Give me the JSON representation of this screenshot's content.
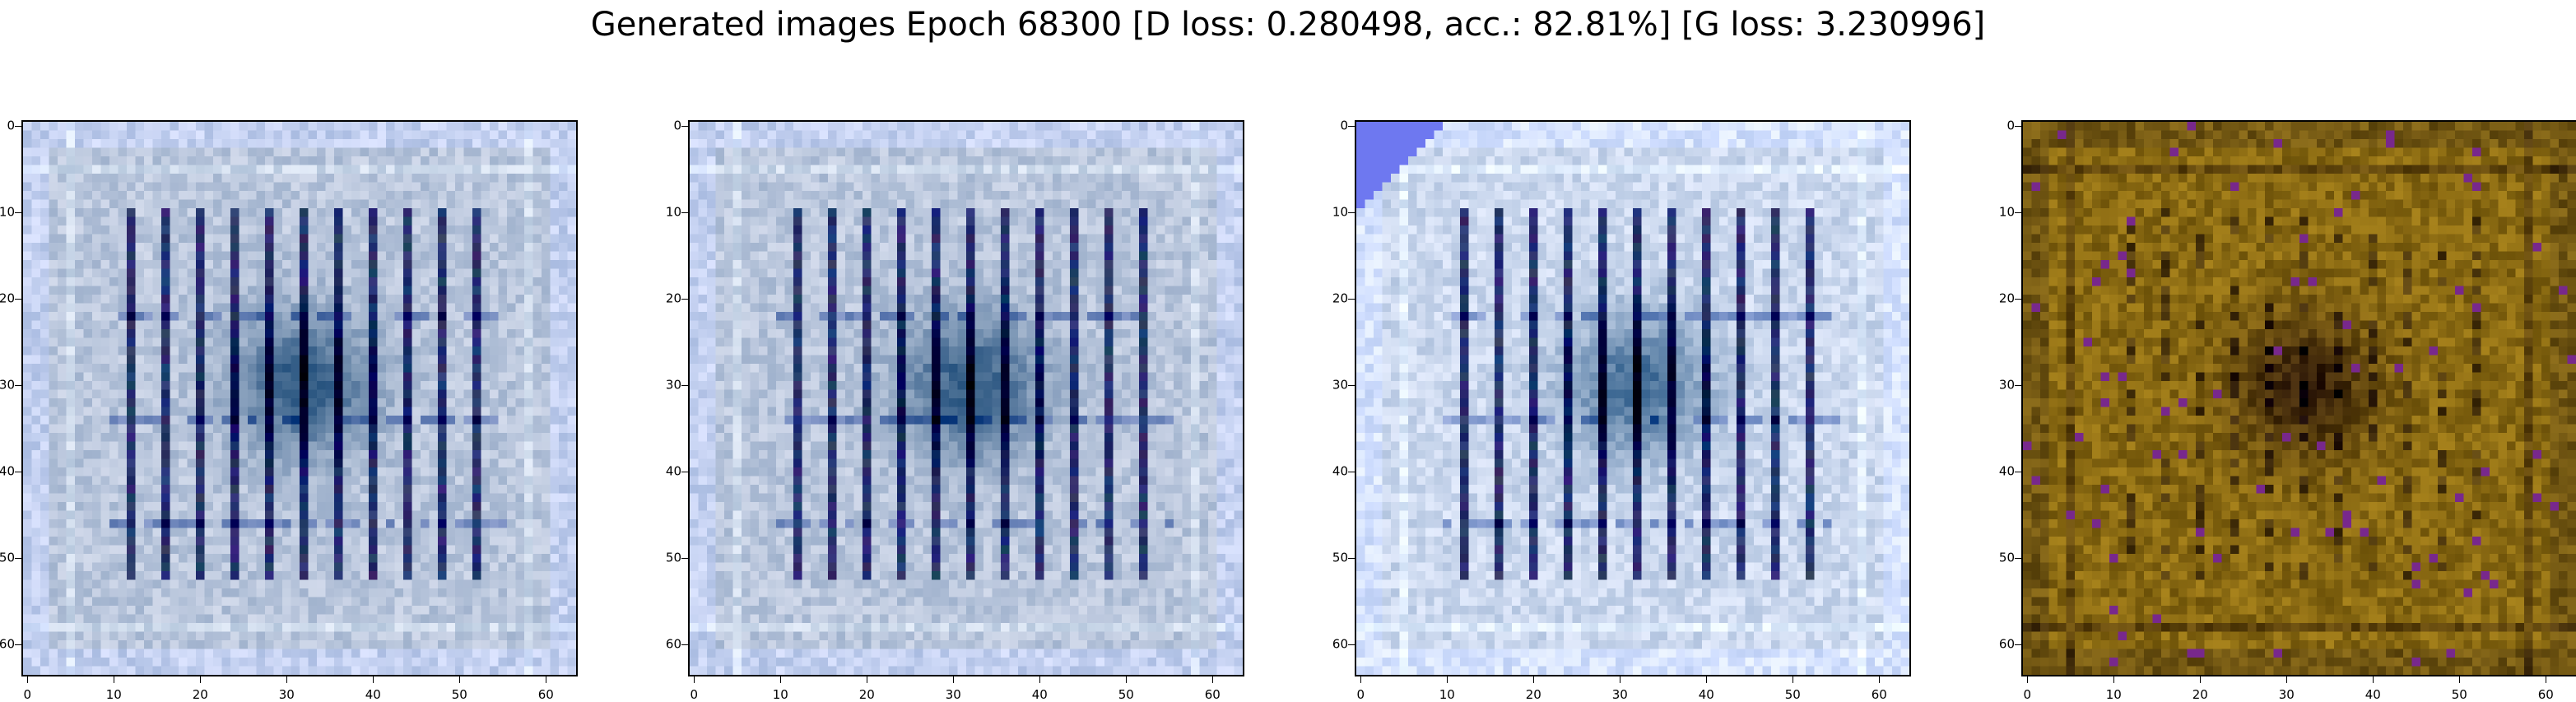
{
  "figure": {
    "title": "Generated images Epoch 68300 [D loss: 0.280498, acc.: 82.81%] [G loss: 3.230996]"
  },
  "panels": [
    {
      "palette": "blue",
      "ytick_labels": [
        "0",
        "10",
        "20",
        "30",
        "40",
        "50",
        "60"
      ],
      "xtick_labels": [
        "0",
        "10",
        "20",
        "30",
        "40",
        "50",
        "60"
      ]
    },
    {
      "palette": "blue",
      "ytick_labels": [
        "0",
        "10",
        "20",
        "30",
        "40",
        "50",
        "60"
      ],
      "xtick_labels": [
        "0",
        "10",
        "20",
        "30",
        "40",
        "50",
        "60"
      ]
    },
    {
      "palette": "blue-light",
      "ytick_labels": [
        "0",
        "10",
        "20",
        "30",
        "40",
        "50",
        "60"
      ],
      "xtick_labels": [
        "0",
        "10",
        "20",
        "30",
        "40",
        "50",
        "60"
      ]
    },
    {
      "palette": "olive",
      "ytick_labels": [
        "0",
        "10",
        "20",
        "30",
        "40",
        "50",
        "60"
      ],
      "xtick_labels": [
        "0",
        "10",
        "20",
        "30",
        "40",
        "50",
        "60"
      ]
    }
  ],
  "colors": {
    "blue_base": "#b9c6dc",
    "blue_dark": "#0b1a4a",
    "olive_base": "#8a6a12",
    "olive_dark": "#2a1f06"
  }
}
